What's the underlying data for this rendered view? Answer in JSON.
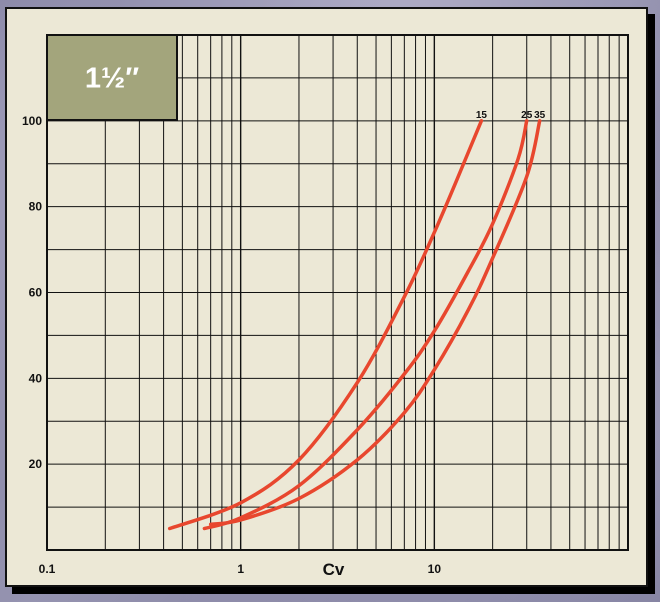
{
  "chart_data": {
    "type": "line",
    "title": "1½″",
    "xlabel": "Cv",
    "ylabel": "",
    "x_scale": "log",
    "xlim": [
      0.1,
      100
    ],
    "ylim": [
      0,
      120
    ],
    "x_tick_labels": [
      {
        "value": 0.1,
        "label": "0.1"
      },
      {
        "value": 1,
        "label": "1"
      },
      {
        "value": 10,
        "label": "10"
      }
    ],
    "y_tick_labels": [
      {
        "value": 20,
        "label": "20"
      },
      {
        "value": 40,
        "label": "40"
      },
      {
        "value": 60,
        "label": "60"
      },
      {
        "value": 80,
        "label": "80"
      },
      {
        "value": 100,
        "label": "100"
      }
    ],
    "grid": true,
    "legend": "labels at curve ends",
    "line_color": "#e8472e",
    "title_box_color": "#a3a57c",
    "panel_color": "#ece8d6",
    "series": [
      {
        "name": "15",
        "x": [
          0.43,
          1,
          2,
          4,
          7,
          10,
          13,
          17.5
        ],
        "y": [
          5,
          11,
          21,
          39,
          59,
          74,
          86,
          100
        ]
      },
      {
        "name": "25",
        "x": [
          0.65,
          1,
          2,
          4,
          7,
          10,
          15,
          20,
          27,
          30
        ],
        "y": [
          5,
          7.5,
          15,
          28,
          41,
          51,
          65,
          76,
          91,
          100
        ]
      },
      {
        "name": "35",
        "x": [
          0.7,
          1,
          2,
          4,
          7,
          10,
          15,
          20,
          30,
          35
        ],
        "y": [
          6,
          7,
          12,
          21,
          32,
          42,
          56,
          68,
          87,
          100
        ]
      }
    ]
  }
}
